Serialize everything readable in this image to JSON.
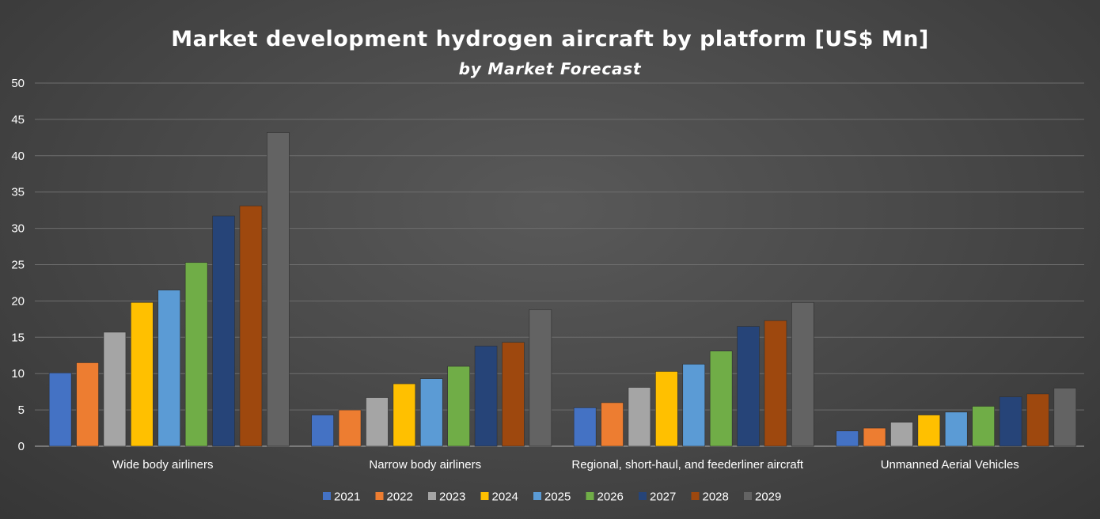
{
  "chart_data": {
    "type": "bar",
    "title": "Market development hydrogen aircraft by platform [US$ Mn]",
    "subtitle": "by Market Forecast",
    "xlabel": "",
    "ylabel": "",
    "ylim": [
      0,
      50
    ],
    "yticks": [
      "0",
      "5",
      "10",
      "15",
      "20",
      "25",
      "30",
      "35",
      "40",
      "45",
      "50"
    ],
    "grid": true,
    "legend_position": "bottom",
    "categories": [
      "Wide body airliners",
      "Narrow body airliners",
      "Regional, short-haul, and feederliner aircraft",
      "Unmanned Aerial Vehicles"
    ],
    "series": [
      {
        "name": "2021",
        "color": "#4472C4",
        "values": [
          10.1,
          4.3,
          5.3,
          2.1
        ]
      },
      {
        "name": "2022",
        "color": "#ED7D31",
        "values": [
          11.5,
          5.0,
          6.0,
          2.5
        ]
      },
      {
        "name": "2023",
        "color": "#A5A5A5",
        "values": [
          15.7,
          6.7,
          8.1,
          3.3
        ]
      },
      {
        "name": "2024",
        "color": "#FFC000",
        "values": [
          19.8,
          8.6,
          10.3,
          4.3
        ]
      },
      {
        "name": "2025",
        "color": "#5B9BD5",
        "values": [
          21.5,
          9.3,
          11.3,
          4.7
        ]
      },
      {
        "name": "2026",
        "color": "#70AD47",
        "values": [
          25.3,
          11.0,
          13.1,
          5.5
        ]
      },
      {
        "name": "2027",
        "color": "#264478",
        "values": [
          31.7,
          13.8,
          16.5,
          6.8
        ]
      },
      {
        "name": "2028",
        "color": "#9E480E",
        "values": [
          33.1,
          14.3,
          17.3,
          7.2
        ]
      },
      {
        "name": "2029",
        "color": "#636363",
        "values": [
          43.2,
          18.8,
          19.8,
          8.0
        ]
      }
    ]
  }
}
